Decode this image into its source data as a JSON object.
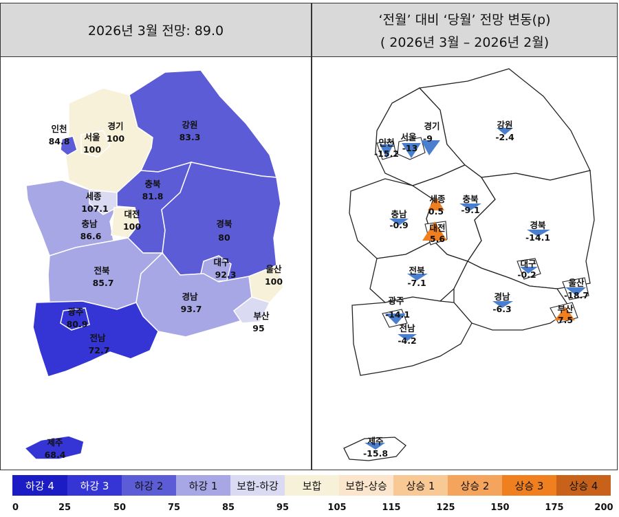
{
  "header": {
    "left_title": "2026년 3월 전망: 89.0",
    "right_title_line1": "‘전월’ 대비 ‘당월’ 전망 변동(p)",
    "right_title_line2": "( 2026년 3월 –  2026년 2월)"
  },
  "left_map": {
    "regions": [
      {
        "name": "인천",
        "value": "84.8"
      },
      {
        "name": "경기",
        "value": "100"
      },
      {
        "name": "서울",
        "value": "100"
      },
      {
        "name": "강원",
        "value": "83.3"
      },
      {
        "name": "세종",
        "value": "107.1"
      },
      {
        "name": "충북",
        "value": "81.8"
      },
      {
        "name": "대전",
        "value": "100"
      },
      {
        "name": "충남",
        "value": "86.6"
      },
      {
        "name": "경북",
        "value": "80"
      },
      {
        "name": "대구",
        "value": "92.3"
      },
      {
        "name": "울산",
        "value": "100"
      },
      {
        "name": "전북",
        "value": "85.7"
      },
      {
        "name": "경남",
        "value": "93.7"
      },
      {
        "name": "부산",
        "value": "95"
      },
      {
        "name": "광주",
        "value": "80.9"
      },
      {
        "name": "전남",
        "value": "72.7"
      },
      {
        "name": "제주",
        "value": "68.4"
      }
    ]
  },
  "right_map": {
    "regions": [
      {
        "name": "경기",
        "value": "-9"
      },
      {
        "name": "강원",
        "value": "-2.4"
      },
      {
        "name": "인천",
        "value": "-15.2"
      },
      {
        "name": "서울",
        "value": "-13"
      },
      {
        "name": "세종",
        "value": "0.5"
      },
      {
        "name": "충북",
        "value": "-9.1"
      },
      {
        "name": "충남",
        "value": "-0.9"
      },
      {
        "name": "대전",
        "value": "5.6"
      },
      {
        "name": "경북",
        "value": "-14.1"
      },
      {
        "name": "대구",
        "value": "-0.2"
      },
      {
        "name": "전북",
        "value": "-7.1"
      },
      {
        "name": "울산",
        "value": "-18.7"
      },
      {
        "name": "광주",
        "value": "-14.1"
      },
      {
        "name": "경남",
        "value": "-6.3"
      },
      {
        "name": "부산",
        "value": "7.5"
      },
      {
        "name": "전남",
        "value": "-4.2"
      },
      {
        "name": "제주",
        "value": "-15.8"
      }
    ]
  },
  "legend": {
    "items": [
      {
        "label": "하강 4",
        "color": "#1c1cc4",
        "text_color": "#ffffff"
      },
      {
        "label": "하강 3",
        "color": "#3535d6",
        "text_color": "#ffffff"
      },
      {
        "label": "하강 2",
        "color": "#5c5cd6",
        "text_color": "#111111"
      },
      {
        "label": "하강 1",
        "color": "#a7a7e6",
        "text_color": "#111111"
      },
      {
        "label": "보합-하강",
        "color": "#dadaf2",
        "text_color": "#111111"
      },
      {
        "label": "보합",
        "color": "#f6f1d8",
        "text_color": "#111111"
      },
      {
        "label": "보합-상승",
        "color": "#fbe5cc",
        "text_color": "#111111"
      },
      {
        "label": "상승 1",
        "color": "#f8c895",
        "text_color": "#111111"
      },
      {
        "label": "상승 2",
        "color": "#f4a45c",
        "text_color": "#111111"
      },
      {
        "label": "상승 3",
        "color": "#f07f1f",
        "text_color": "#111111"
      },
      {
        "label": "상승 4",
        "color": "#c8621a",
        "text_color": "#111111"
      }
    ],
    "ticks": [
      "0",
      "25",
      "50",
      "75",
      "85",
      "95",
      "105",
      "115",
      "125",
      "150",
      "175",
      "200"
    ]
  },
  "colors": {
    "decrease_marker": "#4a7fd0",
    "increase_marker": "#f07f1f",
    "header_bg": "#d9d9d9"
  }
}
